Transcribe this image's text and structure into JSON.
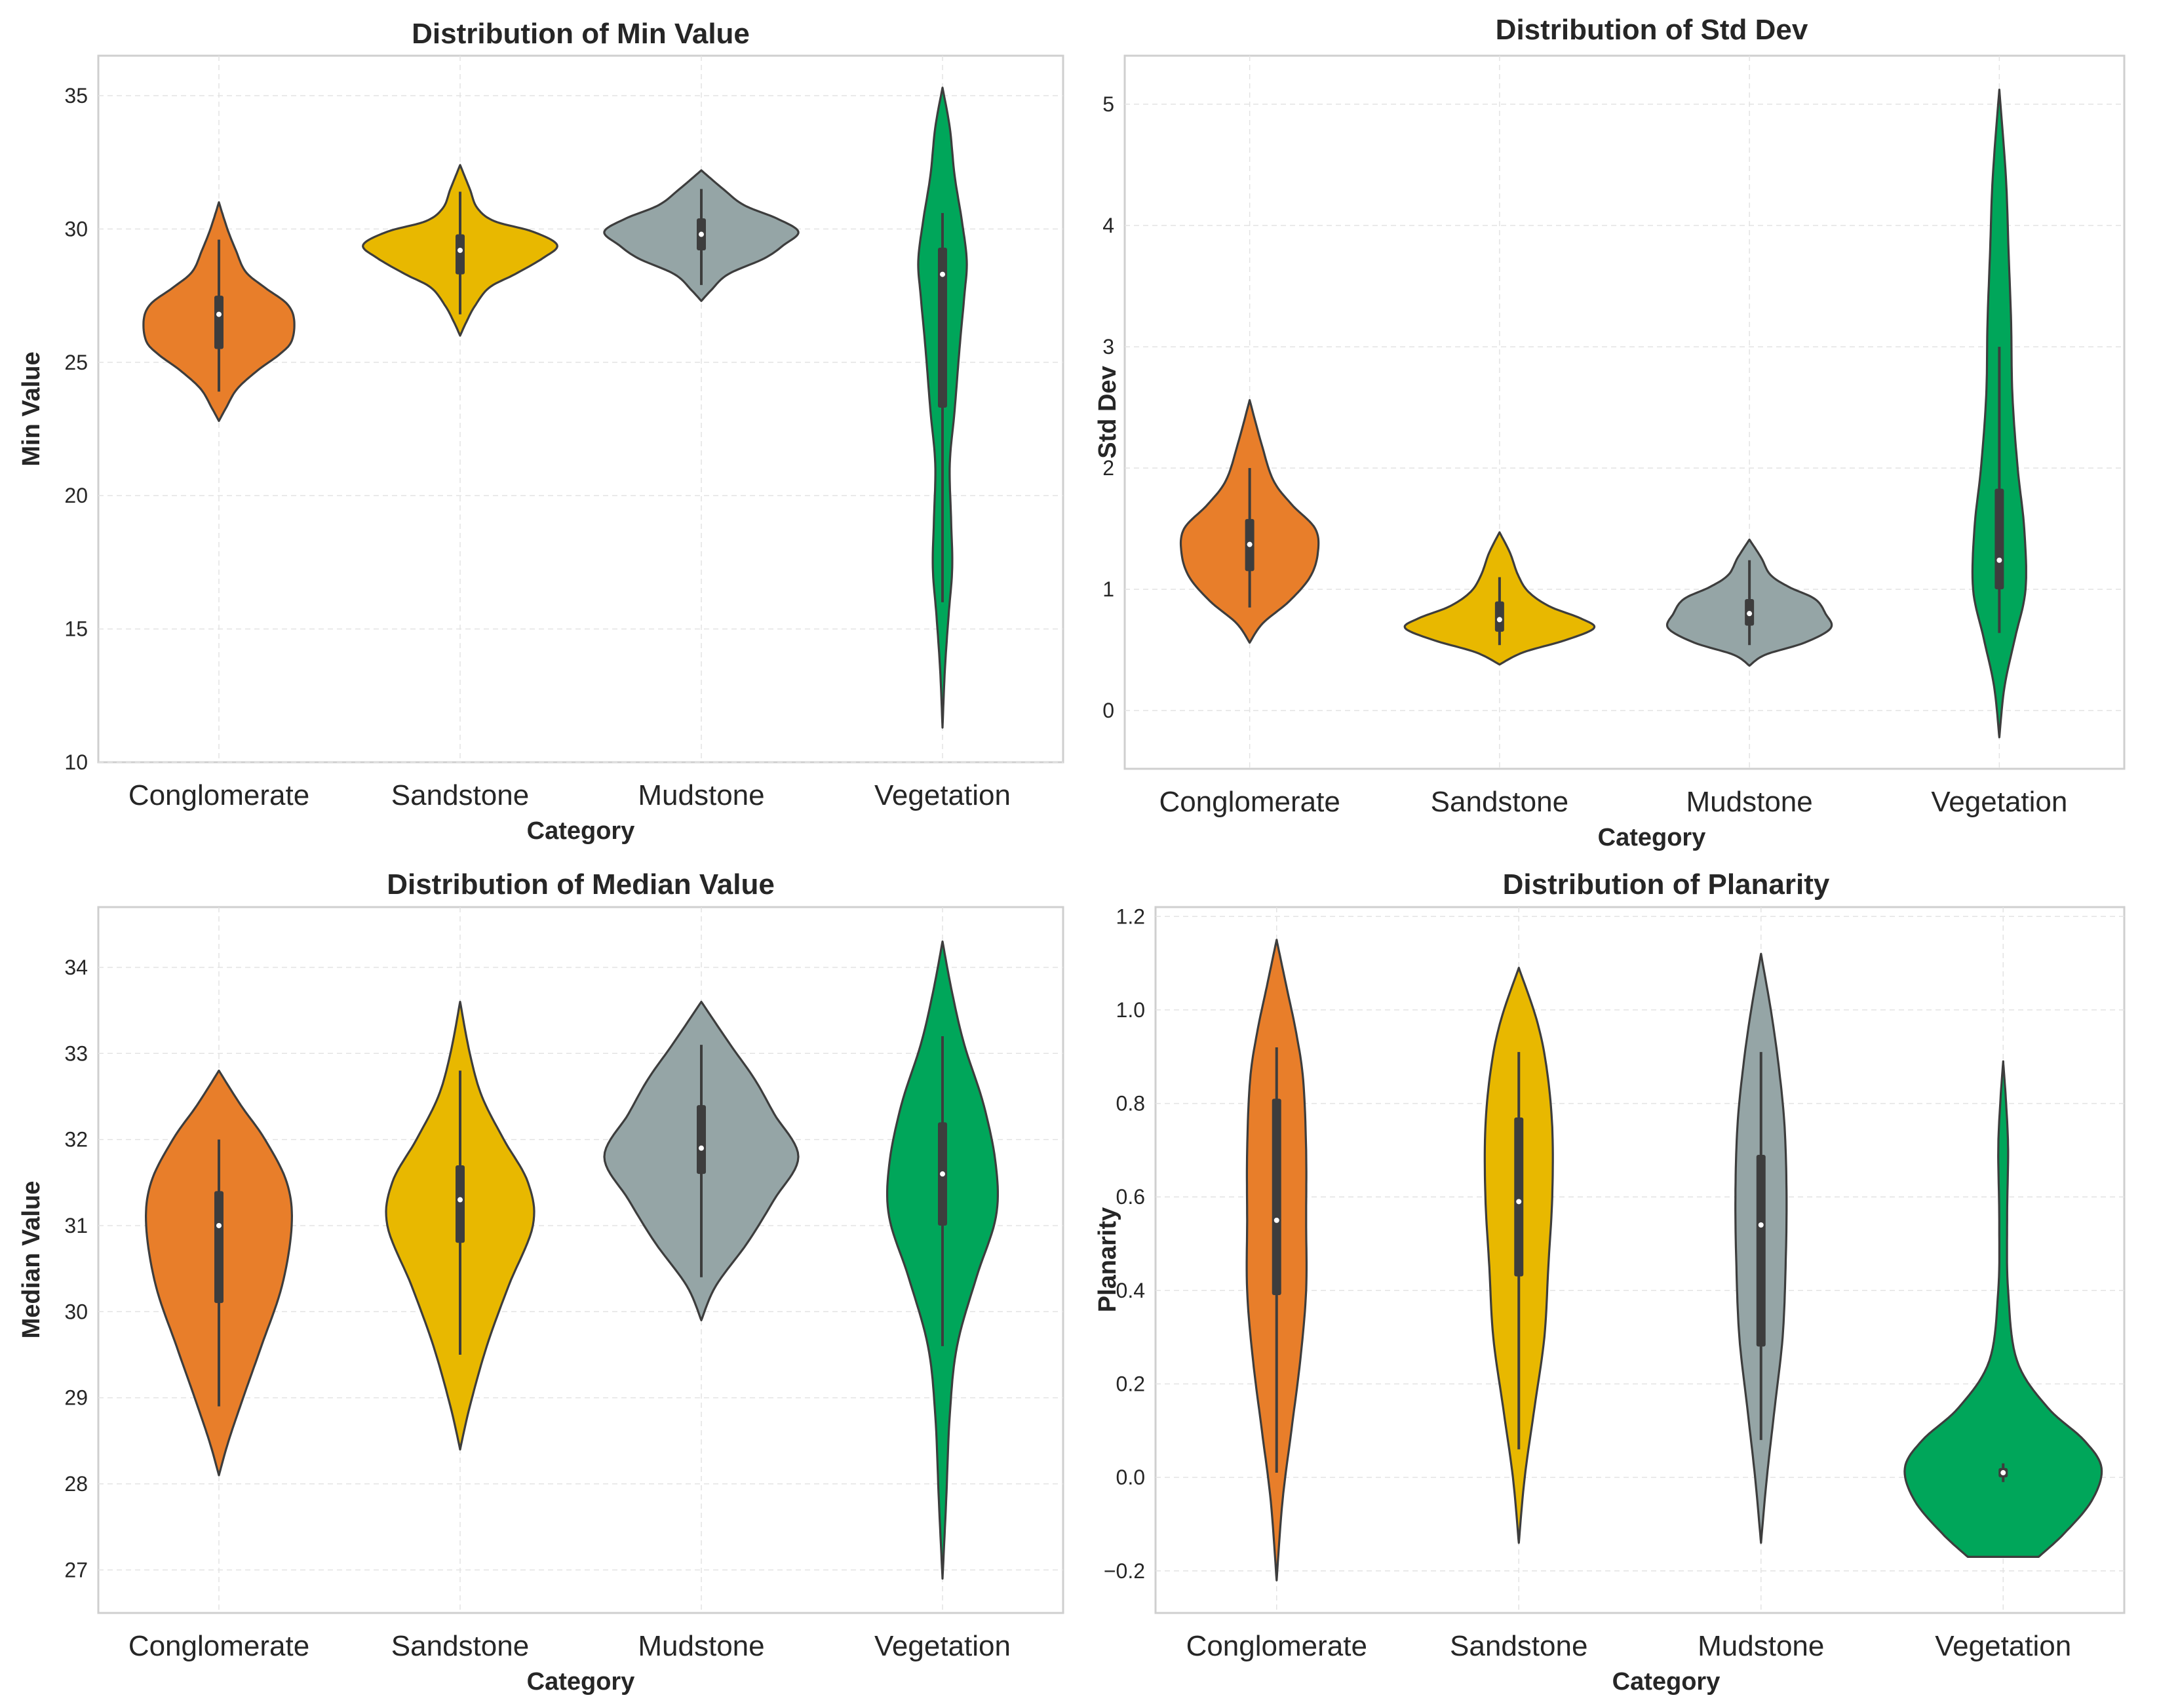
{
  "chart_data": [
    {
      "type": "violin",
      "title": "Distribution of Min Value",
      "xlabel": "Category",
      "ylabel": "Min Value",
      "categories": [
        "Conglomerate",
        "Sandstone",
        "Mudstone",
        "Vegetation"
      ],
      "ylim": [
        10,
        36.5
      ],
      "yticks": [
        10,
        15,
        20,
        25,
        30,
        35
      ],
      "ytick_labels": [
        "10",
        "15",
        "20",
        "25",
        "30",
        "35"
      ],
      "colors": [
        "#e87e2a",
        "#e8b800",
        "#95a5a6",
        "#00a65a"
      ],
      "grid": true,
      "violins": [
        {
          "name": "Conglomerate",
          "ymin": 22.8,
          "ymax": 31.0,
          "q1": 25.5,
          "median": 26.8,
          "q3": 27.5,
          "whisker_low": 23.9,
          "whisker_high": 29.6,
          "profile": [
            [
              22.8,
              0
            ],
            [
              23.3,
              0.06
            ],
            [
              24.0,
              0.15
            ],
            [
              24.7,
              0.32
            ],
            [
              25.3,
              0.5
            ],
            [
              25.8,
              0.6
            ],
            [
              26.6,
              0.62
            ],
            [
              27.2,
              0.56
            ],
            [
              27.8,
              0.38
            ],
            [
              28.4,
              0.22
            ],
            [
              29.2,
              0.14
            ],
            [
              30.0,
              0.07
            ],
            [
              31.0,
              0
            ]
          ]
        },
        {
          "name": "Sandstone",
          "ymin": 26.0,
          "ymax": 32.4,
          "q1": 28.3,
          "median": 29.2,
          "q3": 29.8,
          "whisker_low": 26.8,
          "whisker_high": 31.4,
          "profile": [
            [
              26.0,
              0
            ],
            [
              26.5,
              0.05
            ],
            [
              27.1,
              0.12
            ],
            [
              27.8,
              0.24
            ],
            [
              28.3,
              0.45
            ],
            [
              28.9,
              0.68
            ],
            [
              29.4,
              0.8
            ],
            [
              29.9,
              0.6
            ],
            [
              30.3,
              0.28
            ],
            [
              30.8,
              0.14
            ],
            [
              31.5,
              0.08
            ],
            [
              32.4,
              0
            ]
          ]
        },
        {
          "name": "Mudstone",
          "ymin": 27.3,
          "ymax": 32.2,
          "q1": 29.2,
          "median": 29.8,
          "q3": 30.4,
          "whisker_low": 27.9,
          "whisker_high": 31.5,
          "profile": [
            [
              27.3,
              0
            ],
            [
              27.7,
              0.08
            ],
            [
              28.3,
              0.22
            ],
            [
              28.9,
              0.52
            ],
            [
              29.4,
              0.68
            ],
            [
              29.9,
              0.8
            ],
            [
              30.4,
              0.62
            ],
            [
              30.9,
              0.35
            ],
            [
              31.5,
              0.18
            ],
            [
              32.2,
              0
            ]
          ]
        },
        {
          "name": "Vegetation",
          "ymin": 11.3,
          "ymax": 35.3,
          "q1": 23.3,
          "median": 28.3,
          "q3": 29.3,
          "whisker_low": 16.0,
          "whisker_high": 30.6,
          "profile": [
            [
              11.3,
              0
            ],
            [
              13.5,
              0.02
            ],
            [
              15.5,
              0.05
            ],
            [
              17.3,
              0.08
            ],
            [
              19.2,
              0.07
            ],
            [
              21.2,
              0.06
            ],
            [
              23.2,
              0.1
            ],
            [
              25.5,
              0.14
            ],
            [
              27.5,
              0.18
            ],
            [
              28.8,
              0.2
            ],
            [
              30.3,
              0.16
            ],
            [
              32.0,
              0.1
            ],
            [
              33.8,
              0.06
            ],
            [
              35.3,
              0
            ]
          ]
        }
      ]
    },
    {
      "type": "violin",
      "title": "Distribution of Std Dev",
      "xlabel": "Category",
      "ylabel": "Std Dev",
      "categories": [
        "Conglomerate",
        "Sandstone",
        "Mudstone",
        "Vegetation"
      ],
      "ylim": [
        -0.48,
        5.4
      ],
      "yticks": [
        0,
        1,
        2,
        3,
        4,
        5
      ],
      "ytick_labels": [
        "0",
        "1",
        "2",
        "3",
        "4",
        "5"
      ],
      "colors": [
        "#e87e2a",
        "#e8b800",
        "#95a5a6",
        "#00a65a"
      ],
      "grid": true,
      "violins": [
        {
          "name": "Conglomerate",
          "ymin": 0.56,
          "ymax": 2.56,
          "q1": 1.15,
          "median": 1.37,
          "q3": 1.58,
          "whisker_low": 0.85,
          "whisker_high": 2.0,
          "profile": [
            [
              0.56,
              0
            ],
            [
              0.72,
              0.1
            ],
            [
              0.9,
              0.3
            ],
            [
              1.1,
              0.46
            ],
            [
              1.3,
              0.52
            ],
            [
              1.5,
              0.5
            ],
            [
              1.7,
              0.32
            ],
            [
              1.9,
              0.18
            ],
            [
              2.2,
              0.09
            ],
            [
              2.56,
              0
            ]
          ]
        },
        {
          "name": "Sandstone",
          "ymin": 0.38,
          "ymax": 1.47,
          "q1": 0.65,
          "median": 0.75,
          "q3": 0.9,
          "whisker_low": 0.54,
          "whisker_high": 1.1,
          "profile": [
            [
              0.38,
              0
            ],
            [
              0.48,
              0.18
            ],
            [
              0.58,
              0.5
            ],
            [
              0.68,
              0.72
            ],
            [
              0.76,
              0.62
            ],
            [
              0.86,
              0.38
            ],
            [
              0.98,
              0.22
            ],
            [
              1.12,
              0.14
            ],
            [
              1.3,
              0.08
            ],
            [
              1.47,
              0
            ]
          ]
        },
        {
          "name": "Mudstone",
          "ymin": 0.37,
          "ymax": 1.41,
          "q1": 0.7,
          "median": 0.8,
          "q3": 0.92,
          "whisker_low": 0.54,
          "whisker_high": 1.24,
          "profile": [
            [
              0.37,
              0
            ],
            [
              0.46,
              0.12
            ],
            [
              0.56,
              0.42
            ],
            [
              0.68,
              0.62
            ],
            [
              0.8,
              0.58
            ],
            [
              0.92,
              0.5
            ],
            [
              1.02,
              0.3
            ],
            [
              1.12,
              0.16
            ],
            [
              1.26,
              0.09
            ],
            [
              1.41,
              0
            ]
          ]
        },
        {
          "name": "Vegetation",
          "ymin": -0.22,
          "ymax": 5.12,
          "q1": 1.0,
          "median": 1.24,
          "q3": 1.83,
          "whisker_low": 0.64,
          "whisker_high": 3.0,
          "profile": [
            [
              -0.22,
              0
            ],
            [
              0.2,
              0.04
            ],
            [
              0.6,
              0.12
            ],
            [
              1.0,
              0.2
            ],
            [
              1.5,
              0.19
            ],
            [
              2.0,
              0.14
            ],
            [
              2.6,
              0.1
            ],
            [
              3.2,
              0.09
            ],
            [
              3.8,
              0.07
            ],
            [
              4.4,
              0.05
            ],
            [
              5.12,
              0
            ]
          ]
        }
      ]
    },
    {
      "type": "violin",
      "title": "Distribution of Median Value",
      "xlabel": "Category",
      "ylabel": "Median Value",
      "categories": [
        "Conglomerate",
        "Sandstone",
        "Mudstone",
        "Vegetation"
      ],
      "ylim": [
        26.5,
        34.7
      ],
      "yticks": [
        27,
        28,
        29,
        30,
        31,
        32,
        33,
        34
      ],
      "ytick_labels": [
        "27",
        "28",
        "29",
        "30",
        "31",
        "32",
        "33",
        "34"
      ],
      "colors": [
        "#e87e2a",
        "#e8b800",
        "#95a5a6",
        "#00a65a"
      ],
      "grid": true,
      "violins": [
        {
          "name": "Conglomerate",
          "ymin": 28.1,
          "ymax": 32.8,
          "q1": 30.1,
          "median": 31.0,
          "q3": 31.4,
          "whisker_low": 28.9,
          "whisker_high": 32.0,
          "profile": [
            [
              28.1,
              0
            ],
            [
              28.5,
              0.08
            ],
            [
              29.0,
              0.2
            ],
            [
              29.6,
              0.35
            ],
            [
              30.3,
              0.52
            ],
            [
              31.0,
              0.6
            ],
            [
              31.5,
              0.56
            ],
            [
              32.0,
              0.38
            ],
            [
              32.4,
              0.18
            ],
            [
              32.8,
              0
            ]
          ]
        },
        {
          "name": "Sandstone",
          "ymin": 28.4,
          "ymax": 33.6,
          "q1": 30.8,
          "median": 31.3,
          "q3": 31.7,
          "whisker_low": 29.5,
          "whisker_high": 32.8,
          "profile": [
            [
              28.4,
              0
            ],
            [
              28.9,
              0.08
            ],
            [
              29.6,
              0.22
            ],
            [
              30.3,
              0.4
            ],
            [
              31.0,
              0.6
            ],
            [
              31.5,
              0.56
            ],
            [
              32.0,
              0.36
            ],
            [
              32.5,
              0.18
            ],
            [
              33.0,
              0.08
            ],
            [
              33.6,
              0
            ]
          ]
        },
        {
          "name": "Mudstone",
          "ymin": 29.9,
          "ymax": 33.6,
          "q1": 31.6,
          "median": 31.9,
          "q3": 32.4,
          "whisker_low": 30.4,
          "whisker_high": 33.1,
          "profile": [
            [
              29.9,
              0
            ],
            [
              30.3,
              0.12
            ],
            [
              30.8,
              0.38
            ],
            [
              31.3,
              0.6
            ],
            [
              31.8,
              0.8
            ],
            [
              32.3,
              0.6
            ],
            [
              32.7,
              0.44
            ],
            [
              33.1,
              0.24
            ],
            [
              33.6,
              0
            ]
          ]
        },
        {
          "name": "Vegetation",
          "ymin": 26.9,
          "ymax": 34.3,
          "q1": 31.0,
          "median": 31.6,
          "q3": 32.2,
          "whisker_low": 29.6,
          "whisker_high": 33.2,
          "profile": [
            [
              26.9,
              0
            ],
            [
              27.8,
              0.03
            ],
            [
              28.8,
              0.06
            ],
            [
              29.6,
              0.12
            ],
            [
              30.4,
              0.28
            ],
            [
              31.1,
              0.44
            ],
            [
              31.7,
              0.44
            ],
            [
              32.4,
              0.34
            ],
            [
              33.1,
              0.18
            ],
            [
              33.7,
              0.08
            ],
            [
              34.3,
              0
            ]
          ]
        }
      ]
    },
    {
      "type": "violin",
      "title": "Distribution of Planarity",
      "xlabel": "Category",
      "ylabel": "Planarity",
      "categories": [
        "Conglomerate",
        "Sandstone",
        "Mudstone",
        "Vegetation"
      ],
      "ylim": [
        -0.29,
        1.22
      ],
      "yticks": [
        -0.2,
        0.0,
        0.2,
        0.4,
        0.6,
        0.8,
        1.0,
        1.2
      ],
      "ytick_labels": [
        "−0.2",
        "0.0",
        "0.2",
        "0.4",
        "0.6",
        "0.8",
        "1.0",
        "1.2"
      ],
      "colors": [
        "#e87e2a",
        "#e8b800",
        "#95a5a6",
        "#00a65a"
      ],
      "grid": true,
      "violins": [
        {
          "name": "Conglomerate",
          "ymin": -0.22,
          "ymax": 1.15,
          "q1": 0.39,
          "median": 0.55,
          "q3": 0.81,
          "whisker_low": 0.01,
          "whisker_high": 0.92,
          "profile": [
            [
              -0.22,
              0
            ],
            [
              -0.05,
              0.06
            ],
            [
              0.1,
              0.15
            ],
            [
              0.25,
              0.24
            ],
            [
              0.4,
              0.3
            ],
            [
              0.55,
              0.3
            ],
            [
              0.7,
              0.3
            ],
            [
              0.85,
              0.27
            ],
            [
              0.95,
              0.2
            ],
            [
              1.05,
              0.1
            ],
            [
              1.15,
              0
            ]
          ]
        },
        {
          "name": "Sandstone",
          "ymin": -0.14,
          "ymax": 1.09,
          "q1": 0.43,
          "median": 0.59,
          "q3": 0.77,
          "whisker_low": 0.06,
          "whisker_high": 0.91,
          "profile": [
            [
              -0.14,
              0
            ],
            [
              0.0,
              0.06
            ],
            [
              0.15,
              0.16
            ],
            [
              0.3,
              0.26
            ],
            [
              0.45,
              0.3
            ],
            [
              0.6,
              0.34
            ],
            [
              0.75,
              0.34
            ],
            [
              0.88,
              0.28
            ],
            [
              0.98,
              0.18
            ],
            [
              1.09,
              0
            ]
          ]
        },
        {
          "name": "Mudstone",
          "ymin": -0.14,
          "ymax": 1.12,
          "q1": 0.28,
          "median": 0.54,
          "q3": 0.69,
          "whisker_low": 0.08,
          "whisker_high": 0.91,
          "profile": [
            [
              -0.14,
              0
            ],
            [
              0.0,
              0.06
            ],
            [
              0.15,
              0.14
            ],
            [
              0.3,
              0.22
            ],
            [
              0.45,
              0.25
            ],
            [
              0.6,
              0.26
            ],
            [
              0.75,
              0.24
            ],
            [
              0.88,
              0.18
            ],
            [
              1.0,
              0.1
            ],
            [
              1.12,
              0
            ]
          ]
        },
        {
          "name": "Vegetation",
          "ymin": -0.17,
          "ymax": 0.89,
          "q1": 0.0,
          "median": 0.01,
          "q3": 0.02,
          "whisker_low": -0.01,
          "whisker_high": 0.03,
          "profile": [
            [
              -0.17,
              0.36
            ],
            [
              -0.12,
              0.62
            ],
            [
              -0.05,
              0.9
            ],
            [
              0.02,
              1.0
            ],
            [
              0.08,
              0.82
            ],
            [
              0.15,
              0.45
            ],
            [
              0.25,
              0.14
            ],
            [
              0.4,
              0.05
            ],
            [
              0.55,
              0.04
            ],
            [
              0.7,
              0.05
            ],
            [
              0.8,
              0.03
            ],
            [
              0.89,
              0
            ]
          ]
        }
      ]
    }
  ]
}
